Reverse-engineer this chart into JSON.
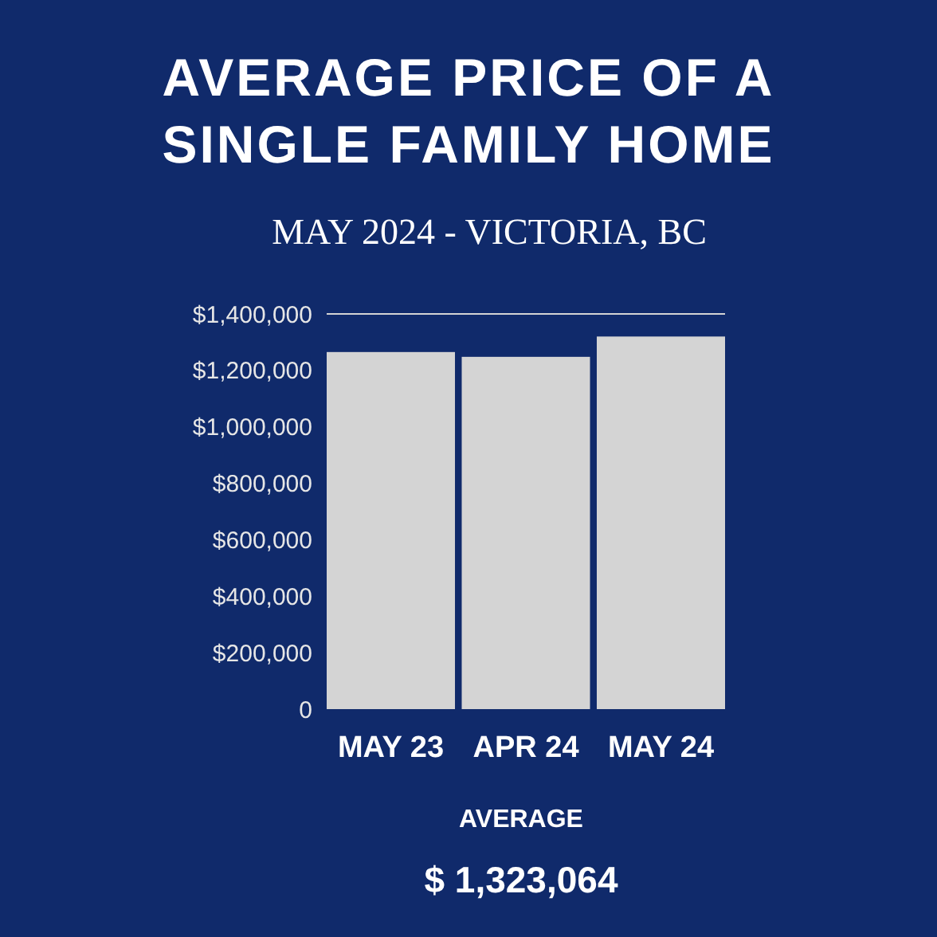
{
  "chart_data": {
    "type": "bar",
    "title": "AVERAGE PRICE OF A SINGLE FAMILY HOME",
    "subtitle": "MAY 2024 - VICTORIA, BC",
    "categories": [
      "MAY 23",
      "APR 24",
      "MAY 24"
    ],
    "values": [
      1265000,
      1248000,
      1320000
    ],
    "color": "#d4d4d4",
    "ylim": [
      0,
      1400000
    ],
    "yticks": [
      {
        "value": 0,
        "label": "0"
      },
      {
        "value": 200000,
        "label": "$200,000"
      },
      {
        "value": 400000,
        "label": "$400,000"
      },
      {
        "value": 600000,
        "label": "$600,000"
      },
      {
        "value": 800000,
        "label": "$800,000"
      },
      {
        "value": 1000000,
        "label": "$1,000,000"
      },
      {
        "value": 1200000,
        "label": "$1,200,000"
      },
      {
        "value": 1400000,
        "label": "$1,400,000"
      }
    ],
    "ref_lines": [
      {
        "axis": "y",
        "value": 1400000,
        "color": "#d4d4d4"
      }
    ],
    "annotations": [
      "AVERAGE",
      "$ 1,323,064"
    ]
  }
}
